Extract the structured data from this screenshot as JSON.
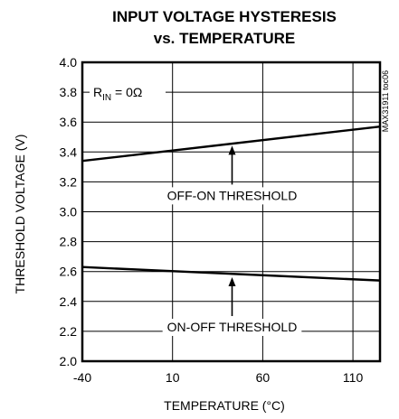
{
  "chart_data": {
    "type": "line",
    "title_line1": "INPUT VOLTAGE HYSTERESIS",
    "title_line2": "vs. TEMPERATURE",
    "xlabel": "TEMPERATURE (°C)",
    "ylabel": "THRESHOLD VOLTAGE (V)",
    "xlim": [
      -40,
      125
    ],
    "ylim": [
      2.0,
      4.0
    ],
    "xticks": [
      -40,
      10,
      60,
      110
    ],
    "yticks": [
      2.0,
      2.2,
      2.4,
      2.6,
      2.8,
      3.0,
      3.2,
      3.4,
      3.6,
      3.8,
      4.0
    ],
    "grid": true,
    "series": [
      {
        "name": "OFF-ON THRESHOLD",
        "x": [
          -40,
          125
        ],
        "y": [
          3.34,
          3.57
        ]
      },
      {
        "name": "ON-OFF THRESHOLD",
        "x": [
          -40,
          125
        ],
        "y": [
          2.63,
          2.54
        ]
      }
    ],
    "condition_main": "R",
    "condition_sub": "IN",
    "condition_value": " = 0Ω",
    "figure_id": "MAX31911 toc06",
    "annotations": [
      {
        "text": "OFF-ON THRESHOLD",
        "x": 43,
        "y": 3.46
      },
      {
        "text": "ON-OFF THRESHOLD",
        "x": 43,
        "y": 2.58
      }
    ]
  }
}
